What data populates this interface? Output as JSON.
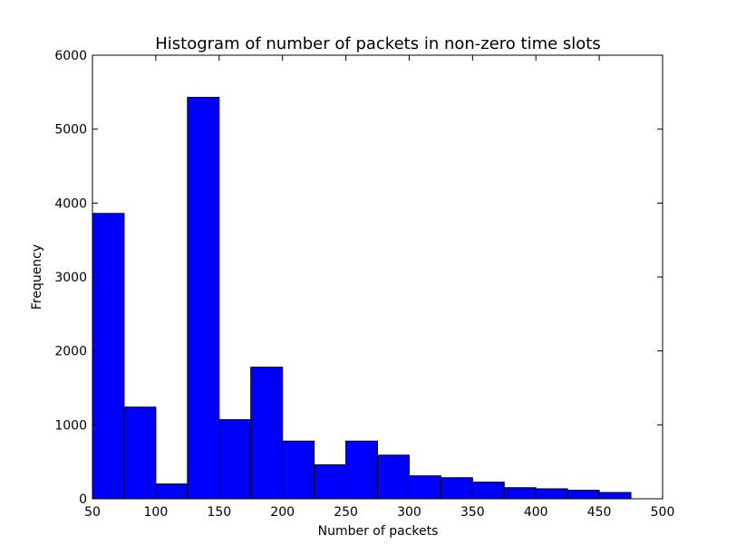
{
  "chart_data": {
    "type": "bar",
    "title": "Histogram of number of packets in non-zero time slots",
    "xlabel": "Number of packets",
    "ylabel": "Frequency",
    "xlim": [
      50,
      500
    ],
    "ylim": [
      0,
      6000
    ],
    "xticks": [
      50,
      100,
      150,
      200,
      250,
      300,
      350,
      400,
      450,
      500
    ],
    "yticks": [
      0,
      1000,
      2000,
      3000,
      4000,
      5000,
      6000
    ],
    "bins": [
      {
        "x0": 50,
        "x1": 75,
        "value": 3860
      },
      {
        "x0": 75,
        "x1": 100,
        "value": 1240
      },
      {
        "x0": 100,
        "x1": 125,
        "value": 200
      },
      {
        "x0": 125,
        "x1": 150,
        "value": 5430
      },
      {
        "x0": 150,
        "x1": 175,
        "value": 1070
      },
      {
        "x0": 175,
        "x1": 200,
        "value": 1780
      },
      {
        "x0": 200,
        "x1": 225,
        "value": 780
      },
      {
        "x0": 225,
        "x1": 250,
        "value": 460
      },
      {
        "x0": 250,
        "x1": 275,
        "value": 780
      },
      {
        "x0": 275,
        "x1": 300,
        "value": 590
      },
      {
        "x0": 300,
        "x1": 325,
        "value": 310
      },
      {
        "x0": 325,
        "x1": 350,
        "value": 285
      },
      {
        "x0": 350,
        "x1": 375,
        "value": 225
      },
      {
        "x0": 375,
        "x1": 400,
        "value": 150
      },
      {
        "x0": 400,
        "x1": 425,
        "value": 135
      },
      {
        "x0": 425,
        "x1": 450,
        "value": 115
      },
      {
        "x0": 450,
        "x1": 475,
        "value": 85
      }
    ],
    "bar_color": "#0000ff",
    "edge_color": "#000000",
    "grid": false
  }
}
